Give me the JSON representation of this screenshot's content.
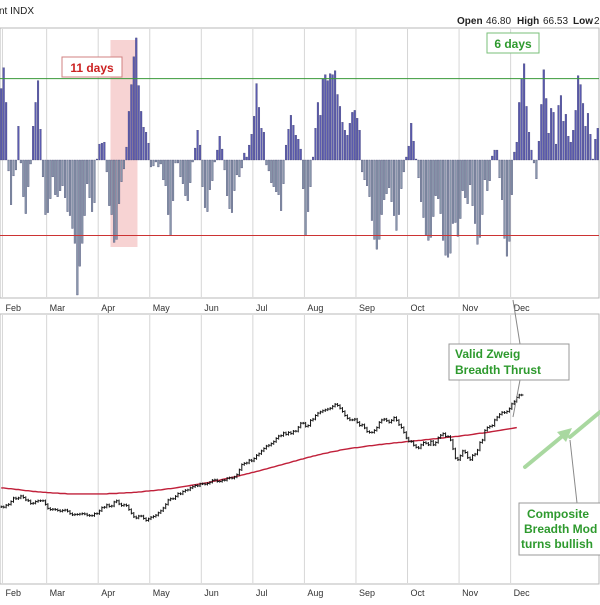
{
  "header": {
    "symbol_text": "nt  INDX",
    "open_label": "Open",
    "open_value": "46.80",
    "high_label": "High",
    "high_value": "66.53",
    "low_label": "Low",
    "low_value": "2"
  },
  "annotations": {
    "days_11": "11 days",
    "days_6": "6 days",
    "zweig_line1": "Valid Zweig",
    "zweig_line2": "Breadth Thrust",
    "composite_line1": "Composite",
    "composite_line2": "Breadth Mod",
    "composite_line3": "turns bullish"
  },
  "colors": {
    "pos_bar": "#5b5bb0",
    "neg_bar": "#8896aa",
    "upper_line": "#3a9a3a",
    "lower_line": "#cc3333",
    "ma_line": "#c0203a",
    "red_band": "#f4c4c4",
    "green_band": "#cfe9cf",
    "green_text": "#2e9a2e",
    "red_text": "#cc2222",
    "arrow": "#a9d8a0",
    "price": "#111111"
  },
  "chart_data": [
    {
      "type": "bar",
      "title": "",
      "xlabel": "",
      "ylabel": "",
      "months": [
        "Feb",
        "Mar",
        "Apr",
        "May",
        "Jun",
        "Jul",
        "Aug",
        "Sep",
        "Oct",
        "Nov",
        "Dec"
      ],
      "ylim": [
        -136,
        120
      ],
      "upper_threshold": 82,
      "lower_threshold": -76,
      "annotations": [
        {
          "text": "11 days",
          "start": 45,
          "end": 56
        },
        {
          "text": "6 days",
          "start": 245,
          "end": 251
        }
      ],
      "values": [
        72,
        93,
        58,
        -11,
        -45,
        -16,
        -10,
        34,
        -3,
        -37,
        -54,
        -27,
        -4,
        34,
        58,
        80,
        31,
        -17,
        -55,
        -53,
        -39,
        -17,
        -35,
        -37,
        -31,
        -26,
        -38,
        -52,
        -56,
        -69,
        -84,
        -136,
        -107,
        -84,
        -56,
        -24,
        -38,
        -52,
        -43,
        1,
        16,
        17,
        18,
        -12,
        -46,
        -55,
        -83,
        -80,
        -44,
        -22,
        -9,
        13,
        49,
        76,
        104,
        123,
        75,
        49,
        33,
        28,
        17,
        -7,
        -6,
        -2,
        -7,
        -4,
        -20,
        -26,
        -55,
        -76,
        -41,
        -3,
        -3,
        -17,
        -24,
        -36,
        -41,
        -23,
        -2,
        12,
        30,
        15,
        -27,
        -48,
        -52,
        -30,
        -21,
        -2,
        10,
        24,
        11,
        -10,
        -36,
        -49,
        -53,
        -31,
        -15,
        -17,
        -8,
        7,
        3,
        15,
        26,
        44,
        77,
        53,
        32,
        28,
        -5,
        -11,
        -23,
        -27,
        -32,
        -35,
        -51,
        -24,
        15,
        31,
        45,
        35,
        25,
        21,
        11,
        -29,
        -76,
        -52,
        -27,
        3,
        32,
        58,
        45,
        82,
        86,
        80,
        87,
        86,
        90,
        66,
        54,
        38,
        30,
        25,
        37,
        48,
        50,
        42,
        30,
        -12,
        -20,
        -26,
        -37,
        -61,
        -80,
        -90,
        -80,
        -55,
        -40,
        -34,
        -28,
        -42,
        -56,
        -71,
        -55,
        -29,
        -12,
        3,
        14,
        37,
        19,
        1,
        -18,
        -42,
        -58,
        -76,
        -81,
        -78,
        -57,
        -36,
        -39,
        -54,
        -81,
        -96,
        -98,
        -94,
        -64,
        -63,
        -77,
        -59,
        -31,
        -38,
        -44,
        -25,
        -46,
        -64,
        -85,
        -78,
        -55,
        -20,
        -31,
        -21,
        4,
        10,
        10,
        -18,
        -40,
        -79,
        -97,
        -82,
        -35,
        8,
        18,
        58,
        82,
        97,
        54,
        28,
        10,
        -3,
        -19,
        19,
        56,
        91,
        62,
        27,
        52,
        48,
        16,
        55,
        65,
        39,
        46,
        24,
        18,
        30,
        50,
        85,
        76,
        57,
        34,
        47,
        26,
        1,
        21,
        32
      ]
    },
    {
      "type": "line",
      "title": "",
      "xlabel": "",
      "ylabel": "",
      "months": [
        "Feb",
        "Mar",
        "Apr",
        "May",
        "Jun",
        "Jul",
        "Aug",
        "Sep",
        "Oct",
        "Nov",
        "Dec"
      ],
      "series_price_close": [
        8,
        7,
        12,
        14,
        21,
        30,
        28,
        30,
        35,
        31,
        25,
        23,
        16,
        17,
        21,
        23,
        23,
        23,
        14,
        4,
        1,
        2,
        1,
        -1,
        -3,
        -1,
        0,
        -3,
        -9,
        -12,
        -11,
        -11,
        -10,
        -9,
        -10,
        -13,
        -14,
        -14,
        -9,
        -9,
        -2,
        6,
        7,
        13,
        9,
        10,
        20,
        23,
        15,
        11,
        13,
        11,
        1,
        -8,
        -17,
        -20,
        -15,
        -15,
        -21,
        -26,
        -22,
        -18,
        -16,
        -13,
        -7,
        -2,
        5,
        14,
        25,
        28,
        28,
        34,
        41,
        40,
        46,
        49,
        50,
        55,
        58,
        61,
        60,
        65,
        65,
        64,
        66,
        69,
        74,
        75,
        71,
        71,
        74,
        74,
        79,
        80,
        79,
        82,
        88,
        100,
        113,
        116,
        117,
        124,
        122,
        128,
        136,
        140,
        147,
        153,
        159,
        161,
        165,
        170,
        178,
        184,
        185,
        192,
        188,
        193,
        190,
        196,
        196,
        206,
        216,
        216,
        208,
        210,
        223,
        226,
        235,
        241,
        244,
        247,
        249,
        251,
        253,
        258,
        263,
        260,
        253,
        245,
        235,
        228,
        224,
        224,
        226,
        218,
        210,
        212,
        204,
        195,
        193,
        193,
        198,
        205,
        218,
        224,
        226,
        222,
        218,
        223,
        230,
        223,
        212,
        205,
        193,
        179,
        171,
        170,
        161,
        156,
        154,
        162,
        168,
        166,
        162,
        171,
        162,
        168,
        180,
        186,
        190,
        183,
        183,
        174,
        152,
        129,
        125,
        135,
        147,
        143,
        130,
        125,
        136,
        139,
        149,
        168,
        174,
        198,
        205,
        208,
        210,
        224,
        231,
        238,
        243,
        242,
        245,
        252,
        264,
        270,
        280,
        286,
        286
      ],
      "series_ma200": [
        55,
        55,
        54,
        53,
        53,
        52,
        51,
        51,
        50,
        49,
        48,
        48,
        47,
        46,
        46,
        45,
        45,
        44,
        44,
        43,
        43,
        42,
        42,
        42,
        41,
        41,
        41,
        40,
        40,
        40,
        40,
        40,
        40,
        40,
        40,
        40,
        40,
        40,
        40,
        40,
        40,
        40,
        40,
        40,
        41,
        41,
        41,
        41,
        42,
        42,
        42,
        43,
        43,
        43,
        44,
        44,
        45,
        45,
        46,
        47,
        47,
        48,
        48,
        49,
        50,
        50,
        51,
        52,
        53,
        53,
        54,
        55,
        56,
        57,
        58,
        59,
        60,
        61,
        62,
        63,
        64,
        65,
        66,
        67,
        68,
        69,
        71,
        72,
        73,
        74,
        76,
        77,
        78,
        80,
        81,
        82,
        84,
        85,
        87,
        88,
        90,
        91,
        93,
        94,
        96,
        97,
        99,
        101,
        102,
        104,
        106,
        107,
        109,
        111,
        112,
        114,
        116,
        117,
        119,
        121,
        122,
        124,
        126,
        127,
        129,
        131,
        132,
        134,
        135,
        137,
        138,
        140,
        141,
        142,
        144,
        145,
        146,
        147,
        149,
        150,
        151,
        152,
        153,
        154,
        155,
        155,
        156,
        157,
        158,
        159,
        160,
        160,
        161,
        162,
        163,
        163,
        164,
        165,
        165,
        166,
        167,
        167,
        168,
        168,
        169,
        170,
        170,
        171,
        172,
        172,
        173,
        173,
        174,
        175,
        175,
        176,
        177,
        177,
        178,
        179,
        179,
        180,
        181,
        181,
        182,
        183,
        183,
        184,
        185,
        186,
        186,
        187,
        188,
        189,
        190,
        191,
        191,
        192,
        193,
        194,
        195,
        196,
        197,
        198,
        199,
        200,
        201,
        202,
        203,
        204,
        205
      ]
    }
  ]
}
